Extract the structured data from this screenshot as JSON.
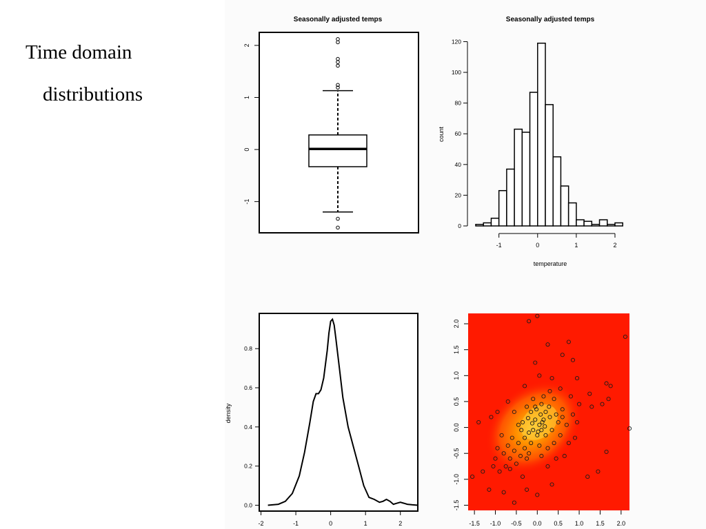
{
  "slide": {
    "title_line1": "Time domain",
    "title_line2": "distributions"
  },
  "chart_data": [
    {
      "type": "box",
      "title": "Seasonally adjusted temps",
      "xlabel": "",
      "ylabel": "",
      "ylim": [
        -1.6,
        2.25
      ],
      "yticks": [
        -1,
        0,
        1,
        2
      ],
      "yticklabels": [
        "-1",
        "0",
        "1",
        "2"
      ],
      "box": {
        "whisker_low": -1.2,
        "q1": -0.33,
        "median": 0.01,
        "q3": 0.28,
        "whisker_high": 1.13
      },
      "outliers": [
        -1.5,
        -1.33,
        1.19,
        1.24,
        1.61,
        1.68,
        1.74,
        2.06,
        2.12
      ]
    },
    {
      "type": "histogram",
      "title": "Seasonally adjusted temps",
      "xlabel": "temperature",
      "ylabel": "count",
      "xlim": [
        -1.6,
        2.25
      ],
      "ylim": [
        0,
        122
      ],
      "xticks": [
        -1,
        0,
        1,
        2
      ],
      "xticklabels": [
        "-1",
        "0",
        "1",
        "2"
      ],
      "yticks": [
        0,
        20,
        40,
        60,
        80,
        100,
        120
      ],
      "yticklabels": [
        "0",
        "20",
        "40",
        "60",
        "80",
        "100",
        "120"
      ],
      "bin_width": 0.2,
      "bin_edges_start": -1.6,
      "counts": [
        1,
        2,
        5,
        23,
        37,
        63,
        61,
        87,
        119,
        79,
        45,
        26,
        15,
        4,
        3,
        1,
        4,
        1,
        2
      ]
    },
    {
      "type": "line",
      "title": "",
      "xlabel": "",
      "ylabel": "density",
      "xlim": [
        -2.05,
        2.5
      ],
      "ylim": [
        -0.03,
        0.98
      ],
      "xticks": [
        -2,
        -1,
        0,
        1,
        2
      ],
      "xticklabels": [
        "-2",
        "-1",
        "0",
        "1",
        "2"
      ],
      "yticks": [
        0.0,
        0.2,
        0.4,
        0.6,
        0.8
      ],
      "yticklabels": [
        "0.0",
        "0.2",
        "0.4",
        "0.6",
        "0.8"
      ],
      "x": [
        -1.8,
        -1.5,
        -1.3,
        -1.1,
        -0.9,
        -0.75,
        -0.6,
        -0.5,
        -0.42,
        -0.35,
        -0.28,
        -0.2,
        -0.1,
        -0.05,
        0.0,
        0.05,
        0.1,
        0.15,
        0.25,
        0.35,
        0.5,
        0.65,
        0.8,
        0.95,
        1.1,
        1.25,
        1.4,
        1.5,
        1.6,
        1.7,
        1.8,
        1.9,
        2.0,
        2.1,
        2.2,
        2.35,
        2.5
      ],
      "y": [
        0.0,
        0.005,
        0.02,
        0.06,
        0.15,
        0.27,
        0.42,
        0.53,
        0.57,
        0.57,
        0.59,
        0.65,
        0.79,
        0.88,
        0.94,
        0.95,
        0.92,
        0.85,
        0.7,
        0.55,
        0.4,
        0.3,
        0.2,
        0.1,
        0.04,
        0.03,
        0.015,
        0.02,
        0.03,
        0.02,
        0.005,
        0.01,
        0.015,
        0.01,
        0.005,
        0.002,
        0.0
      ]
    },
    {
      "type": "scatter",
      "title": "",
      "xlabel": "",
      "ylabel": "",
      "xlim": [
        -1.65,
        2.2
      ],
      "ylim": [
        -1.6,
        2.2
      ],
      "background": "#ff1a00",
      "density_colors": [
        "#ff6a00",
        "#ffa000",
        "#ffd23c"
      ],
      "xticks": [
        -1.5,
        -1.0,
        -0.5,
        0.0,
        0.5,
        1.0,
        1.5,
        2.0
      ],
      "xticklabels": [
        "-1.5",
        "-1.0",
        "-0.5",
        "0.0",
        "0.5",
        "1.0",
        "1.5",
        "2.0"
      ],
      "yticks": [
        -1.5,
        -1.0,
        -0.5,
        0.0,
        0.5,
        1.0,
        1.5,
        2.0
      ],
      "yticklabels": [
        "-1.5",
        "-1.0",
        "-0.5",
        "0.0",
        "0.5",
        "1.0",
        "1.5",
        "2.0"
      ],
      "points": [
        [
          -0.2,
          2.05
        ],
        [
          0.0,
          2.15
        ],
        [
          0.25,
          1.6
        ],
        [
          0.75,
          1.65
        ],
        [
          2.1,
          1.75
        ],
        [
          -1.55,
          -0.95
        ],
        [
          -1.4,
          0.1
        ],
        [
          -1.3,
          -0.85
        ],
        [
          -1.1,
          0.2
        ],
        [
          -0.95,
          0.3
        ],
        [
          -1.15,
          -1.2
        ],
        [
          -0.8,
          -1.25
        ],
        [
          -0.55,
          -1.45
        ],
        [
          -0.25,
          -1.2
        ],
        [
          0.0,
          -1.3
        ],
        [
          0.35,
          -1.1
        ],
        [
          1.2,
          -0.95
        ],
        [
          1.45,
          -0.85
        ],
        [
          1.65,
          -0.47
        ],
        [
          2.2,
          -0.02
        ],
        [
          1.65,
          0.85
        ],
        [
          1.75,
          0.8
        ],
        [
          1.7,
          0.55
        ],
        [
          1.55,
          0.45
        ],
        [
          1.3,
          0.4
        ],
        [
          0.6,
          1.4
        ],
        [
          -0.05,
          1.25
        ],
        [
          0.85,
          1.3
        ],
        [
          -0.65,
          -0.8
        ],
        [
          0.95,
          0.95
        ],
        [
          1.25,
          0.65
        ],
        [
          -0.3,
          0.8
        ],
        [
          0.05,
          1.0
        ],
        [
          0.35,
          0.95
        ],
        [
          0.55,
          0.75
        ],
        [
          0.8,
          0.6
        ],
        [
          -0.7,
          0.5
        ],
        [
          0.4,
          0.55
        ],
        [
          0.6,
          0.35
        ],
        [
          1.0,
          0.45
        ],
        [
          0.25,
          -0.75
        ],
        [
          0.65,
          -0.55
        ],
        [
          0.9,
          -0.2
        ],
        [
          -1.0,
          -0.6
        ],
        [
          -0.9,
          -0.85
        ],
        [
          -0.35,
          -0.95
        ],
        [
          -0.55,
          0.3
        ],
        [
          -0.45,
          0.05
        ],
        [
          0.95,
          0.1
        ],
        [
          -0.2,
          -0.5
        ],
        [
          0.5,
          0.1
        ],
        [
          0.7,
          0.05
        ],
        [
          0.3,
          0.7
        ],
        [
          -0.1,
          0.55
        ],
        [
          -0.25,
          0.4
        ],
        [
          -0.15,
          0.3
        ],
        [
          0.1,
          0.45
        ],
        [
          0.2,
          0.3
        ],
        [
          0.3,
          0.2
        ],
        [
          0.15,
          0.15
        ],
        [
          -0.05,
          0.15
        ],
        [
          0.05,
          0.05
        ],
        [
          0.1,
          -0.05
        ],
        [
          -0.1,
          -0.05
        ],
        [
          0.0,
          -0.15
        ],
        [
          -0.2,
          -0.1
        ],
        [
          -0.3,
          -0.2
        ],
        [
          0.2,
          -0.15
        ],
        [
          0.35,
          -0.05
        ],
        [
          0.45,
          0.25
        ],
        [
          -0.35,
          0.1
        ],
        [
          -0.45,
          -0.3
        ],
        [
          -0.55,
          -0.45
        ],
        [
          -0.6,
          -0.2
        ],
        [
          -0.7,
          -0.35
        ],
        [
          -0.8,
          -0.5
        ],
        [
          -0.65,
          -0.6
        ],
        [
          -0.5,
          -0.7
        ],
        [
          -0.4,
          -0.55
        ],
        [
          -0.3,
          -0.4
        ],
        [
          -0.15,
          -0.3
        ],
        [
          0.05,
          -0.35
        ],
        [
          0.25,
          -0.4
        ],
        [
          0.4,
          -0.3
        ],
        [
          0.55,
          -0.15
        ],
        [
          0.6,
          0.2
        ],
        [
          0.15,
          0.6
        ],
        [
          -0.05,
          0.4
        ],
        [
          0.08,
          0.25
        ],
        [
          -0.02,
          0.35
        ],
        [
          0.12,
          0.1
        ],
        [
          -0.12,
          0.08
        ],
        [
          0.02,
          -0.08
        ],
        [
          0.18,
          0.02
        ],
        [
          -0.22,
          0.18
        ],
        [
          0.28,
          0.4
        ],
        [
          -0.38,
          -0.05
        ],
        [
          -0.25,
          -0.6
        ],
        [
          -0.85,
          -0.15
        ],
        [
          -0.95,
          -0.4
        ],
        [
          -1.05,
          -0.75
        ],
        [
          -0.75,
          -0.75
        ],
        [
          0.1,
          -0.55
        ],
        [
          0.45,
          -0.6
        ],
        [
          0.75,
          -0.3
        ],
        [
          0.85,
          0.25
        ]
      ]
    }
  ]
}
